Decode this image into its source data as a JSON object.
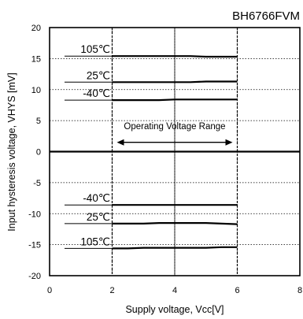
{
  "chart_data": {
    "type": "line",
    "title": "BH6766FVM",
    "xlabel": "Supply voltage, Vcc[V]",
    "ylabel": "Input hysteresis voltage, VHYS [mV]",
    "xlim": [
      0,
      8
    ],
    "ylim": [
      -20,
      20
    ],
    "xticks": [
      "0",
      "2",
      "4",
      "6",
      "8"
    ],
    "yticks": [
      "20",
      "15",
      "10",
      "5",
      "0",
      "-5",
      "-10",
      "-15",
      "-20"
    ],
    "grid": true,
    "x": [
      2,
      2.5,
      3,
      3.5,
      4,
      4.5,
      5,
      5.5,
      6
    ],
    "series": [
      {
        "name": "105℃",
        "values": [
          15.4,
          15.4,
          15.4,
          15.4,
          15.4,
          15.4,
          15.3,
          15.3,
          15.3
        ]
      },
      {
        "name": "25℃",
        "values": [
          11.2,
          11.2,
          11.2,
          11.2,
          11.2,
          11.2,
          11.3,
          11.3,
          11.3
        ]
      },
      {
        "name": "-40℃",
        "values": [
          8.3,
          8.3,
          8.3,
          8.3,
          8.4,
          8.4,
          8.4,
          8.4,
          8.4
        ]
      },
      {
        "name": "-40℃",
        "values": [
          -8.6,
          -8.6,
          -8.6,
          -8.6,
          -8.6,
          -8.6,
          -8.6,
          -8.6,
          -8.6
        ]
      },
      {
        "name": "25℃",
        "values": [
          -11.6,
          -11.6,
          -11.6,
          -11.5,
          -11.5,
          -11.5,
          -11.5,
          -11.6,
          -11.7
        ]
      },
      {
        "name": "105℃",
        "values": [
          -15.6,
          -15.6,
          -15.5,
          -15.5,
          -15.5,
          -15.5,
          -15.5,
          -15.4,
          -15.4
        ]
      }
    ],
    "range_annotation": {
      "label": "Operating Voltage Range",
      "from": 2,
      "to": 6
    },
    "colors": {
      "line": "#000000",
      "grid": "#000000",
      "background": "#ffffff"
    }
  }
}
